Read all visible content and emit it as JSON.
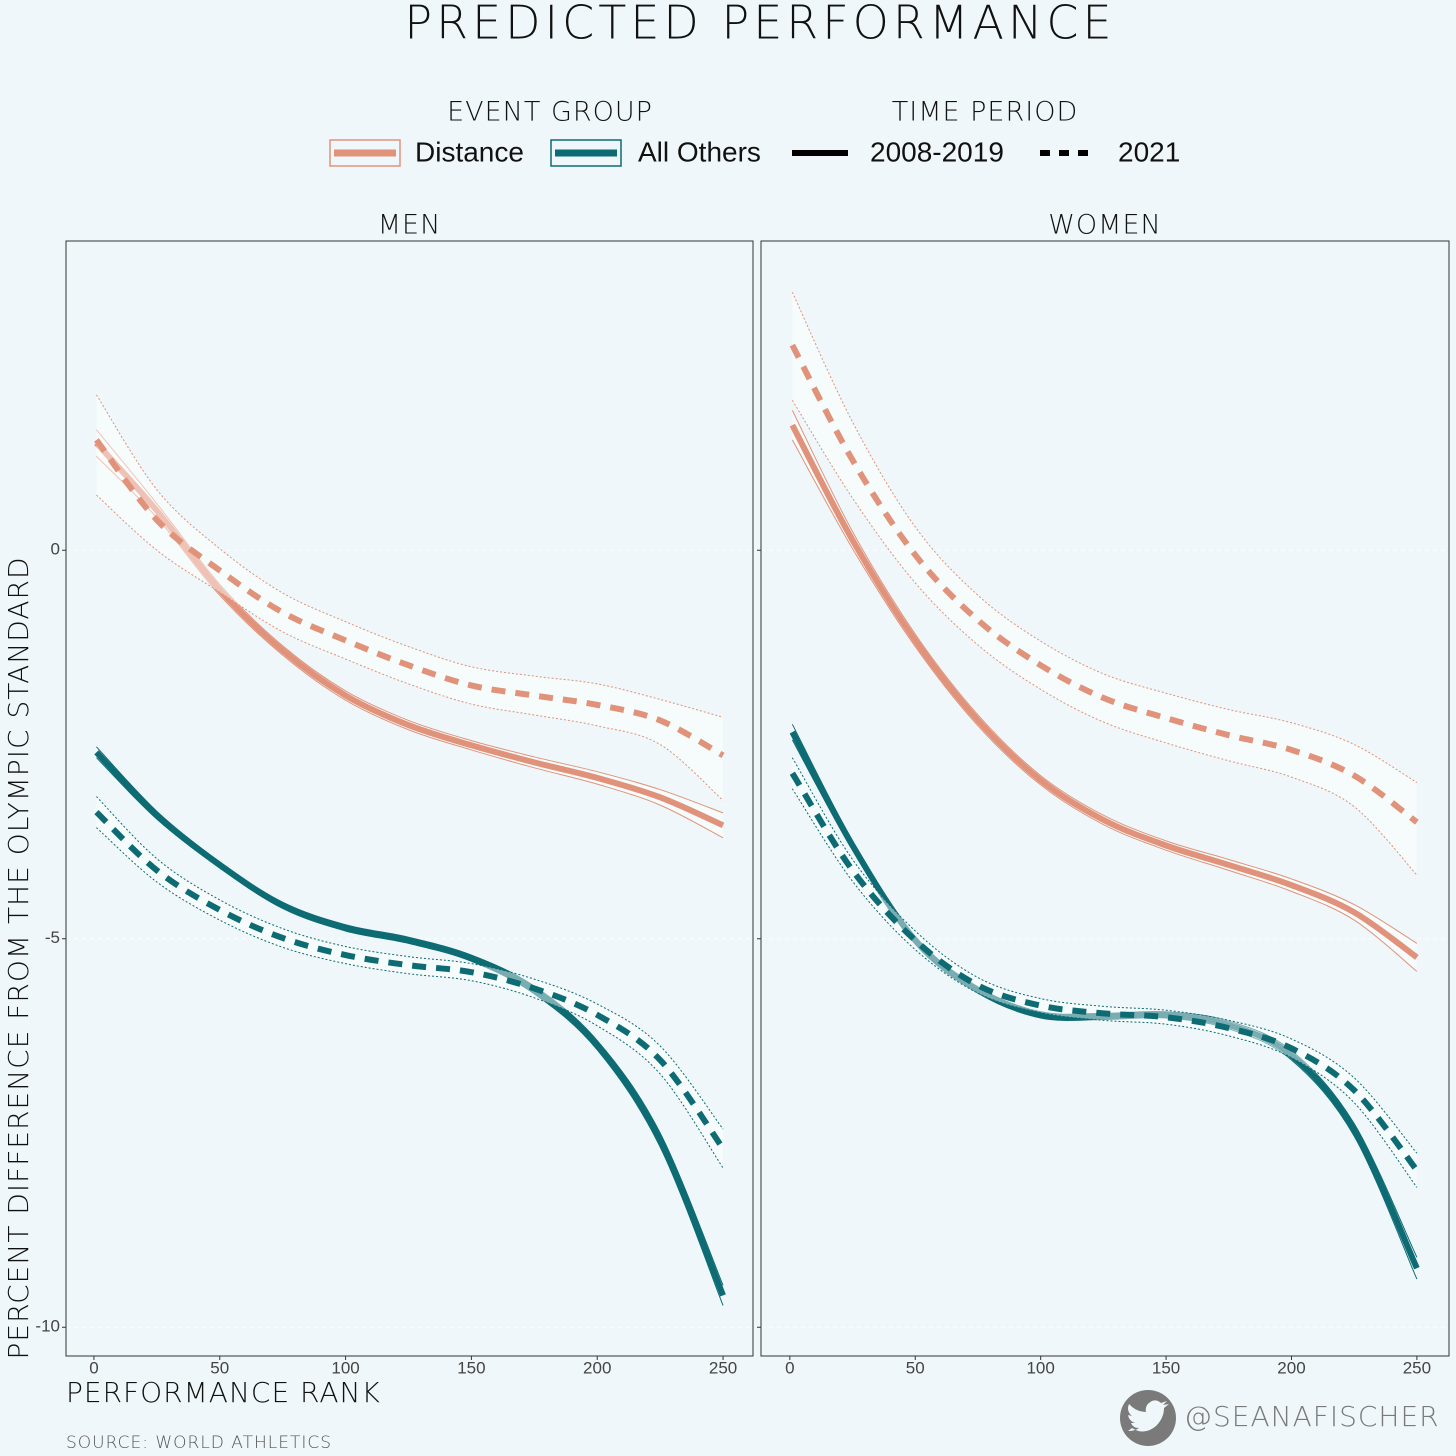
{
  "title": "PREDICTED PERFORMANCE",
  "legend": [
    {
      "title": "EVENT GROUP",
      "items": [
        {
          "label": "Distance",
          "color": "#e0937a"
        },
        {
          "label": "All Others",
          "color": "#0d6b73"
        }
      ]
    },
    {
      "title": "TIME PERIOD",
      "items": [
        {
          "label": "2008-2019",
          "dash": false
        },
        {
          "label": "2021",
          "dash": true
        }
      ]
    }
  ],
  "y_label": "PERCENT DIFFERENCE FROM THE OLYMPIC STANDARD",
  "x_label": "PERFORMANCE RANK",
  "source": "SOURCE: WORLD ATHLETICS",
  "handle": "@SEANAFISCHER",
  "chart_data": [
    {
      "type": "line",
      "title": "MEN",
      "x": [
        1,
        25,
        50,
        75,
        100,
        125,
        150,
        175,
        200,
        225,
        250
      ],
      "xlim": [
        -11.1,
        261.9
      ],
      "ylim": [
        -10.37,
        3.98
      ],
      "xticks": [
        0,
        50,
        100,
        150,
        200,
        250
      ],
      "yticks": [
        -10,
        -5,
        0
      ],
      "grid": true,
      "series": [
        {
          "color": "#e0937a",
          "dash": false,
          "values": [
            1.38,
            0.51,
            -0.51,
            -1.29,
            -1.87,
            -2.25,
            -2.51,
            -2.73,
            -2.93,
            -3.18,
            -3.54
          ],
          "upper": [
            1.55,
            0.6,
            -0.44,
            -1.23,
            -1.81,
            -2.19,
            -2.45,
            -2.66,
            -2.85,
            -3.08,
            -3.38
          ],
          "lower": [
            1.21,
            0.42,
            -0.58,
            -1.35,
            -1.93,
            -2.31,
            -2.57,
            -2.8,
            -3.01,
            -3.28,
            -3.7
          ]
        },
        {
          "color": "#e0937a",
          "dash": true,
          "values": [
            1.42,
            0.39,
            -0.26,
            -0.8,
            -1.16,
            -1.48,
            -1.74,
            -1.87,
            -1.99,
            -2.19,
            -2.64
          ],
          "upper": [
            2.0,
            0.78,
            0.02,
            -0.55,
            -0.92,
            -1.24,
            -1.5,
            -1.62,
            -1.72,
            -1.92,
            -2.15
          ],
          "lower": [
            0.71,
            0.0,
            -0.54,
            -1.05,
            -1.4,
            -1.72,
            -1.98,
            -2.12,
            -2.26,
            -2.5,
            -3.22
          ]
        },
        {
          "color": "#0d6b73",
          "dash": false,
          "values": [
            -2.6,
            -3.41,
            -4.05,
            -4.57,
            -4.86,
            -5.02,
            -5.25,
            -5.66,
            -6.37,
            -7.59,
            -9.59
          ],
          "upper": [
            -2.53,
            -3.36,
            -4.01,
            -4.53,
            -4.82,
            -4.98,
            -5.21,
            -5.61,
            -6.31,
            -7.5,
            -9.46
          ],
          "lower": [
            -2.67,
            -3.46,
            -4.09,
            -4.61,
            -4.9,
            -5.06,
            -5.29,
            -5.71,
            -6.43,
            -7.68,
            -9.72
          ]
        },
        {
          "color": "#0d6b73",
          "dash": true,
          "values": [
            -3.37,
            -4.12,
            -4.63,
            -4.99,
            -5.21,
            -5.34,
            -5.43,
            -5.64,
            -5.98,
            -6.56,
            -7.7
          ],
          "upper": [
            -3.17,
            -3.97,
            -4.5,
            -4.87,
            -5.1,
            -5.23,
            -5.32,
            -5.52,
            -5.84,
            -6.38,
            -7.45
          ],
          "lower": [
            -3.57,
            -4.27,
            -4.76,
            -5.11,
            -5.32,
            -5.45,
            -5.54,
            -5.76,
            -6.12,
            -6.74,
            -7.95
          ]
        }
      ]
    },
    {
      "type": "line",
      "title": "WOMEN",
      "x": [
        1,
        25,
        50,
        75,
        100,
        125,
        150,
        175,
        200,
        225,
        250
      ],
      "xlim": [
        -11.5,
        262.8
      ],
      "ylim": [
        -10.37,
        3.98
      ],
      "xticks": [
        0,
        50,
        100,
        150,
        200,
        250
      ],
      "yticks": [
        -10,
        -5,
        0
      ],
      "grid": true,
      "series": [
        {
          "color": "#e0937a",
          "dash": false,
          "values": [
            1.61,
            0.13,
            -1.16,
            -2.19,
            -2.96,
            -3.47,
            -3.8,
            -4.05,
            -4.31,
            -4.66,
            -5.24
          ],
          "upper": [
            1.8,
            0.24,
            -1.08,
            -2.12,
            -2.9,
            -3.41,
            -3.74,
            -3.98,
            -4.23,
            -4.56,
            -5.06
          ],
          "lower": [
            1.42,
            0.02,
            -1.24,
            -2.26,
            -3.02,
            -3.53,
            -3.86,
            -4.12,
            -4.39,
            -4.76,
            -5.42
          ]
        },
        {
          "color": "#e0937a",
          "dash": true,
          "values": [
            2.64,
            1.16,
            -0.06,
            -0.9,
            -1.48,
            -1.9,
            -2.16,
            -2.38,
            -2.57,
            -2.9,
            -3.5
          ],
          "upper": [
            3.32,
            1.65,
            0.3,
            -0.58,
            -1.17,
            -1.59,
            -1.84,
            -2.05,
            -2.22,
            -2.5,
            -2.99
          ],
          "lower": [
            1.93,
            0.67,
            -0.42,
            -1.22,
            -1.79,
            -2.21,
            -2.48,
            -2.71,
            -2.92,
            -3.3,
            -4.18
          ]
        },
        {
          "color": "#0d6b73",
          "dash": false,
          "values": [
            -2.34,
            -3.8,
            -5.02,
            -5.66,
            -5.98,
            -6.0,
            -5.98,
            -6.11,
            -6.5,
            -7.46,
            -9.24
          ],
          "upper": [
            -2.24,
            -3.74,
            -4.97,
            -5.62,
            -5.94,
            -5.96,
            -5.94,
            -6.06,
            -6.44,
            -7.38,
            -9.1
          ],
          "lower": [
            -2.44,
            -3.86,
            -5.07,
            -5.7,
            -6.02,
            -6.04,
            -6.02,
            -6.16,
            -6.56,
            -7.54,
            -9.38
          ]
        },
        {
          "color": "#0d6b73",
          "dash": true,
          "values": [
            -2.87,
            -4.12,
            -5.02,
            -5.6,
            -5.86,
            -5.96,
            -6.01,
            -6.15,
            -6.41,
            -6.95,
            -7.98
          ],
          "upper": [
            -2.67,
            -3.98,
            -4.9,
            -5.5,
            -5.77,
            -5.87,
            -5.92,
            -6.05,
            -6.29,
            -6.79,
            -7.76
          ],
          "lower": [
            -3.07,
            -4.26,
            -5.14,
            -5.7,
            -5.95,
            -6.05,
            -6.1,
            -6.25,
            -6.53,
            -7.11,
            -8.2
          ]
        }
      ]
    }
  ]
}
